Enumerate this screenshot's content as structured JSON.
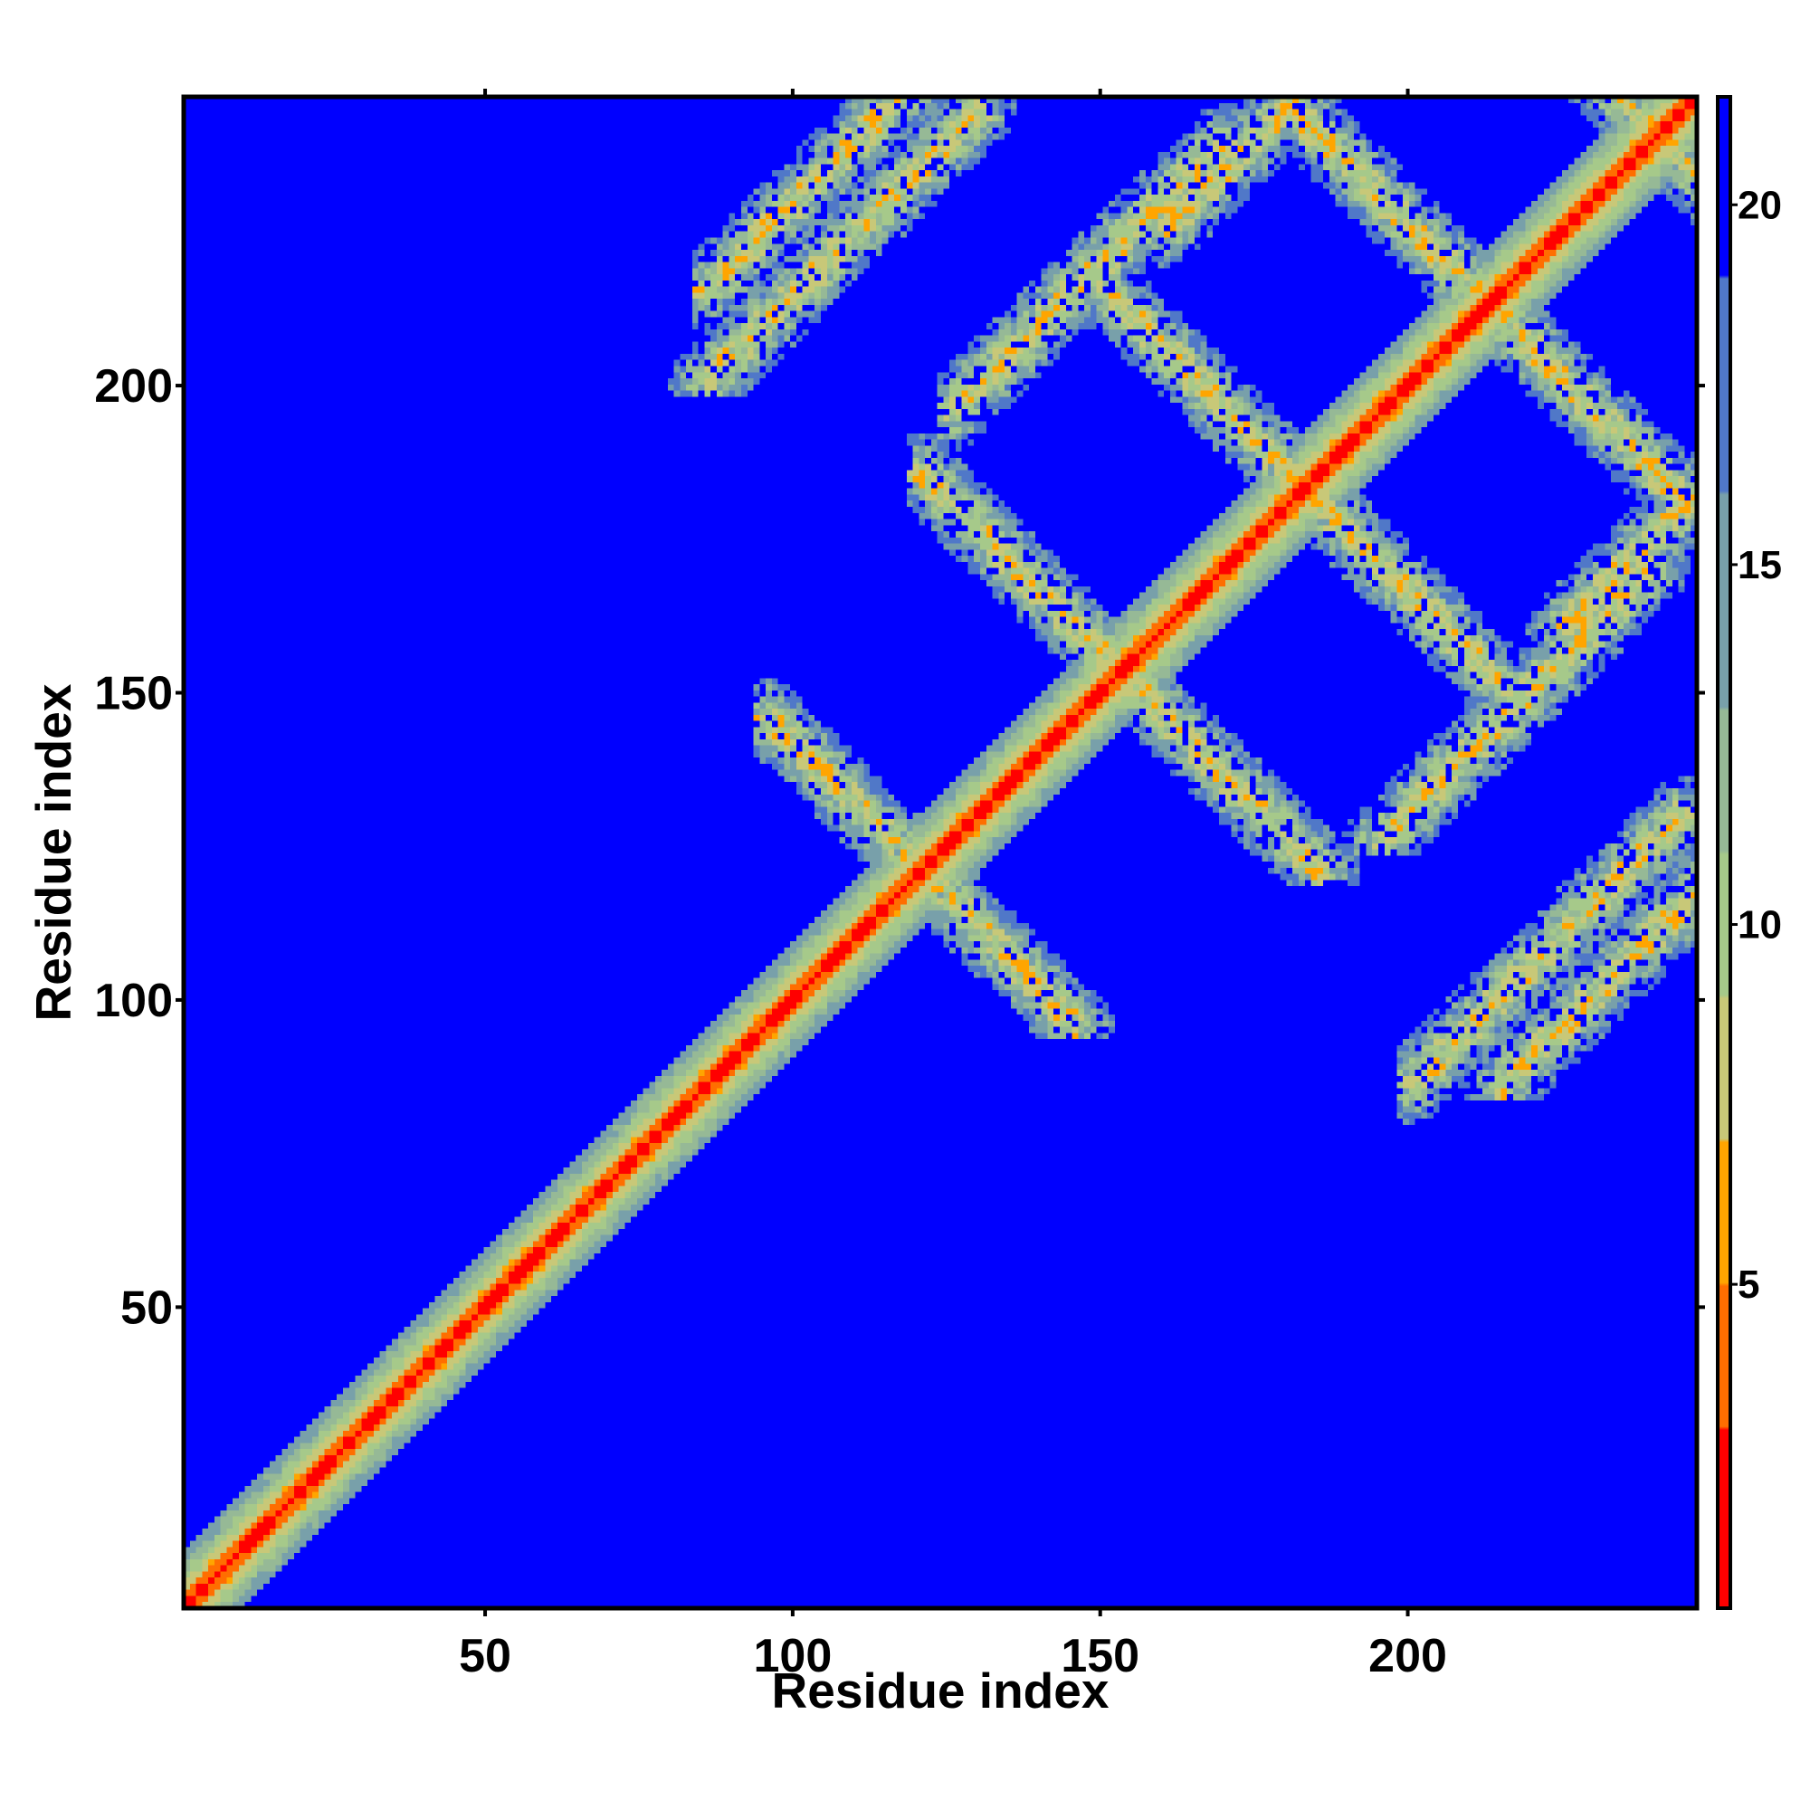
{
  "chart_data": {
    "type": "heatmap",
    "title": "",
    "xlabel": "Residue index",
    "ylabel": "Residue index",
    "n_residues": 247,
    "xlim": [
      1,
      247
    ],
    "ylim": [
      1,
      247
    ],
    "x_ticks": [
      50,
      100,
      150,
      200
    ],
    "y_ticks": [
      50,
      100,
      150,
      200
    ],
    "colorbar": {
      "ticks": [
        5,
        10,
        15,
        20
      ],
      "range": [
        0.5,
        21.5
      ],
      "colors": {
        "low": "#ff0000",
        "mid_low": "#ffa500",
        "mid": "#a6c98a",
        "high": "#0000ff"
      }
    },
    "background_value": 21,
    "description_values": "pairwise residue distance map; diagonal near 0-4 (red/orange), contact bands ~8-14 (green/gray), background >=20 (blue)",
    "contact_bands": [
      {
        "i_start": 95,
        "j_start": 120,
        "length": 25,
        "direction": "antiparallel"
      },
      {
        "i_start": 120,
        "j_start": 150,
        "length": 35,
        "direction": "antiparallel"
      },
      {
        "i_start": 150,
        "j_start": 180,
        "length": 35,
        "direction": "antiparallel"
      },
      {
        "i_start": 180,
        "j_start": 210,
        "length": 35,
        "direction": "antiparallel"
      },
      {
        "i_start": 210,
        "j_start": 240,
        "length": 30,
        "direction": "antiparallel"
      },
      {
        "i_start": 85,
        "j_start": 215,
        "length": 40,
        "direction": "parallel"
      },
      {
        "i_start": 125,
        "j_start": 195,
        "length": 45,
        "direction": "parallel"
      },
      {
        "i_start": 160,
        "j_start": 225,
        "length": 40,
        "direction": "parallel"
      },
      {
        "i_start": 200,
        "j_start": 85,
        "length": 45,
        "direction": "parallel"
      }
    ]
  }
}
